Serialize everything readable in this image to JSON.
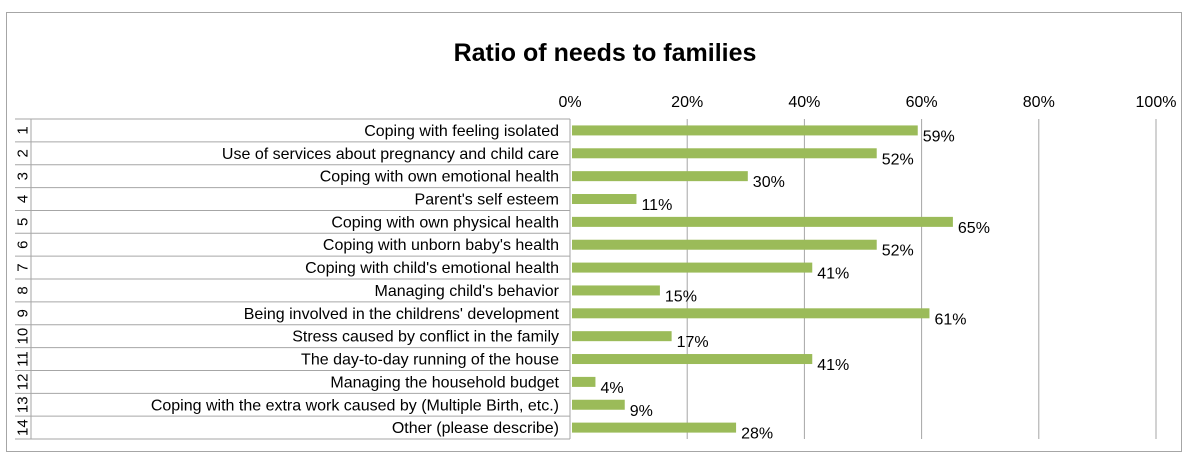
{
  "chart_data": {
    "type": "bar",
    "orientation": "horizontal",
    "title": "Ratio of needs to families",
    "xlim": [
      0,
      100
    ],
    "x_ticks": [
      "0%",
      "20%",
      "40%",
      "60%",
      "80%",
      "100%"
    ],
    "x_tick_values": [
      0,
      20,
      40,
      60,
      80,
      100
    ],
    "axis_position": "top",
    "grid": true,
    "legend": "none",
    "colors": {
      "bar": "#9bbb59",
      "grid": "#a6a6a6",
      "border": "#a6a6a6"
    },
    "numbers": [
      "1",
      "2",
      "3",
      "4",
      "5",
      "6",
      "7",
      "8",
      "9",
      "10",
      "11",
      "12",
      "13",
      "14"
    ],
    "categories": [
      "Coping with feeling isolated",
      "Use of services about pregnancy and child care",
      "Coping with own emotional health",
      "Parent's self esteem",
      "Coping with own physical health",
      "Coping with unborn baby's health",
      "Coping with child's emotional health",
      "Managing child's behavior",
      "Being involved in the childrens' development",
      "Stress caused by conflict in the family",
      "The day-to-day running of the house",
      "Managing the household budget",
      "Coping with the extra work caused by  (Multiple Birth, etc.)",
      "Other (please describe)"
    ],
    "values": [
      59,
      52,
      30,
      11,
      65,
      52,
      41,
      15,
      61,
      17,
      41,
      4,
      9,
      28
    ],
    "data_labels": [
      "59%",
      "52%",
      "30%",
      "11%",
      "65%",
      "52%",
      "41%",
      "15%",
      "61%",
      "17%",
      "41%",
      "4%",
      "9%",
      "28%"
    ]
  }
}
